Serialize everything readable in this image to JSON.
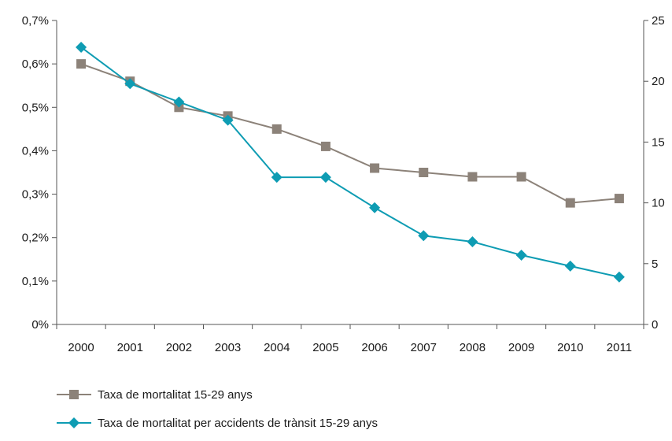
{
  "chart_data": {
    "type": "line",
    "categories": [
      "2000",
      "2001",
      "2002",
      "2003",
      "2004",
      "2005",
      "2006",
      "2007",
      "2008",
      "2009",
      "2010",
      "2011"
    ],
    "left_axis": {
      "min": 0,
      "max": 0.7,
      "ticks": [
        0,
        0.1,
        0.2,
        0.3,
        0.4,
        0.5,
        0.6,
        0.7
      ],
      "tick_labels": [
        "0%",
        "0,1%",
        "0,2%",
        "0,3%",
        "0,4%",
        "0,5%",
        "0,6%",
        "0,7%"
      ]
    },
    "right_axis": {
      "min": 0,
      "max": 25,
      "ticks": [
        0,
        5,
        10,
        15,
        20,
        25
      ],
      "tick_labels": [
        "0",
        "5",
        "10",
        "15",
        "20",
        "25"
      ]
    },
    "grid": false,
    "legend_position": "bottom-left",
    "series": [
      {
        "name": "Taxa de mortalitat 15-29 anys",
        "axis": "left",
        "marker": "square",
        "color": "#8c8279",
        "values": [
          0.6,
          0.56,
          0.5,
          0.48,
          0.45,
          0.41,
          0.36,
          0.35,
          0.34,
          0.34,
          0.28,
          0.29
        ]
      },
      {
        "name": "Taxa de mortalitat per accidents de trànsit 15-29 anys",
        "axis": "right",
        "marker": "diamond",
        "color": "#0e9cb3",
        "values": [
          22.8,
          19.8,
          18.3,
          16.8,
          12.1,
          12.1,
          9.6,
          7.3,
          6.8,
          5.7,
          4.8,
          3.9
        ]
      }
    ]
  },
  "legend": {
    "items": [
      {
        "label": "Taxa de mortalitat 15-29 anys"
      },
      {
        "label": "Taxa de mortalitat per accidents de trànsit 15-29 anys"
      }
    ]
  }
}
